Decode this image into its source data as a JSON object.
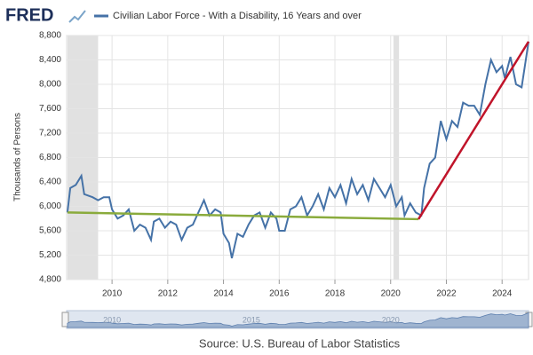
{
  "chart_data": {
    "type": "line",
    "brand": "FRED",
    "title": "Civilian Labor Force - With a Disability, 16 Years and over",
    "ylabel": "Thousands of Persons",
    "source": "Source: U.S. Bureau of Labor Statistics",
    "x": [
      2008.4,
      2008.5,
      2008.7,
      2008.9,
      2009.0,
      2009.3,
      2009.5,
      2009.7,
      2009.9,
      2010.0,
      2010.2,
      2010.4,
      2010.6,
      2010.8,
      2011.0,
      2011.2,
      2011.4,
      2011.5,
      2011.7,
      2011.9,
      2012.1,
      2012.3,
      2012.5,
      2012.7,
      2012.9,
      2013.1,
      2013.3,
      2013.5,
      2013.7,
      2013.9,
      2014.0,
      2014.2,
      2014.3,
      2014.5,
      2014.7,
      2014.9,
      2015.1,
      2015.3,
      2015.5,
      2015.7,
      2015.9,
      2016.0,
      2016.2,
      2016.4,
      2016.6,
      2016.8,
      2017.0,
      2017.2,
      2017.4,
      2017.6,
      2017.8,
      2018.0,
      2018.2,
      2018.4,
      2018.6,
      2018.8,
      2019.0,
      2019.2,
      2019.4,
      2019.6,
      2019.8,
      2020.0,
      2020.2,
      2020.4,
      2020.5,
      2020.7,
      2020.9,
      2021.1,
      2021.2,
      2021.4,
      2021.6,
      2021.8,
      2022.0,
      2022.2,
      2022.4,
      2022.6,
      2022.8,
      2023.0,
      2023.2,
      2023.4,
      2023.6,
      2023.8,
      2024.0,
      2024.1,
      2024.3,
      2024.5,
      2024.7,
      2024.85,
      2024.95
    ],
    "series": [
      {
        "name": "Civilian Labor Force - With a Disability, 16 Years and over",
        "color": "#4572a7",
        "values": [
          5900,
          6300,
          6350,
          6500,
          6200,
          6150,
          6100,
          6150,
          6150,
          5950,
          5800,
          5850,
          5950,
          5600,
          5700,
          5650,
          5450,
          5750,
          5800,
          5650,
          5750,
          5700,
          5450,
          5650,
          5700,
          5900,
          6100,
          5850,
          5950,
          5900,
          5550,
          5400,
          5150,
          5550,
          5500,
          5700,
          5850,
          5900,
          5650,
          5900,
          5800,
          5600,
          5600,
          5950,
          6000,
          6150,
          5850,
          6000,
          6200,
          5950,
          6300,
          6150,
          6350,
          6050,
          6450,
          6200,
          6350,
          6100,
          6450,
          6300,
          6150,
          6350,
          6000,
          6150,
          5850,
          6050,
          5900,
          5850,
          6300,
          6700,
          6800,
          7400,
          7100,
          7400,
          7300,
          7700,
          7650,
          7650,
          7500,
          8000,
          8400,
          8200,
          8300,
          8100,
          8450,
          8000,
          7950,
          8400,
          8700
        ]
      }
    ],
    "trend_lines": [
      {
        "color": "#8aab3c",
        "x": [
          2008.4,
          2021.0
        ],
        "values": [
          5900,
          5790
        ]
      },
      {
        "color": "#c0142a",
        "x": [
          2021.0,
          2024.95
        ],
        "values": [
          5790,
          8700
        ]
      }
    ],
    "recessions": [
      [
        2008.4,
        2009.5
      ],
      [
        2020.1,
        2020.3
      ]
    ],
    "xlim": [
      2008.37,
      2024.95
    ],
    "xticks": [
      2010,
      2012,
      2014,
      2016,
      2018,
      2020,
      2022,
      2024
    ],
    "ylim": [
      4800,
      8800
    ],
    "yticks": [
      {
        "value": 4800,
        "label": "4,800"
      },
      {
        "value": 5200,
        "label": "5,200"
      },
      {
        "value": 5600,
        "label": "5,600"
      },
      {
        "value": 6000,
        "label": "6,000"
      },
      {
        "value": 6400,
        "label": "6,400"
      },
      {
        "value": 6800,
        "label": "6,800"
      },
      {
        "value": 7200,
        "label": "7,200"
      },
      {
        "value": 7600,
        "label": "7,600"
      },
      {
        "value": 8000,
        "label": "8,000"
      },
      {
        "value": 8400,
        "label": "8,400"
      },
      {
        "value": 8800,
        "label": "8,800"
      }
    ],
    "navigator_ticks": [
      2010,
      2015,
      2020
    ],
    "grid": true
  }
}
